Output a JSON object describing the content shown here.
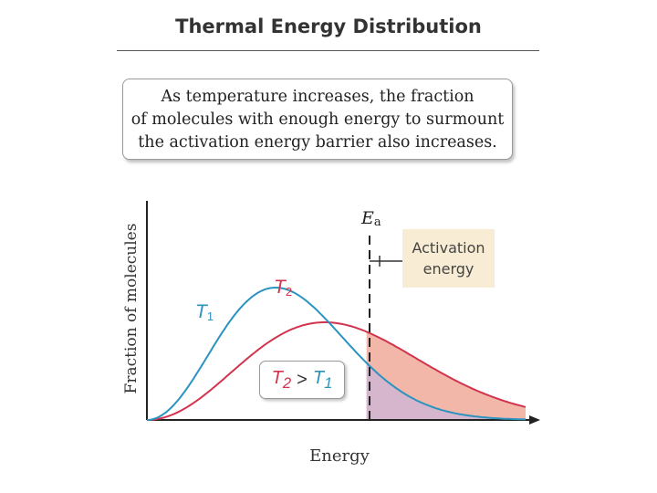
{
  "title": "Thermal Energy Distribution",
  "callout": {
    "lines": [
      "As temperature increases, the fraction",
      "of molecules with enough energy to surmount",
      "the activation energy barrier also increases."
    ]
  },
  "chart_data": {
    "type": "line",
    "xlabel": "Energy",
    "ylabel": "Fraction of molecules",
    "series": [
      {
        "name": "T1",
        "peak_energy": 0.34,
        "color": "#2a93bf"
      },
      {
        "name": "T2",
        "peak_energy": 0.47,
        "color": "#d2344e"
      }
    ],
    "activation_energy": {
      "label": "E",
      "subscript": "a",
      "value": 0.58
    },
    "annotations": {
      "activation_box": [
        "Activation",
        "energy"
      ],
      "comparison": {
        "left": "T",
        "left_sub": "2",
        "op": ">",
        "right": "T",
        "right_sub": "1"
      }
    },
    "shaded_regions": {
      "T2_tail_color": "#f2b7a8",
      "T1_tail_color": "#d5b6cc"
    },
    "ticks": "none",
    "grid": false
  },
  "labels": {
    "t1": {
      "main": "T",
      "sub": "1"
    },
    "t2": {
      "main": "T",
      "sub": "2"
    }
  }
}
